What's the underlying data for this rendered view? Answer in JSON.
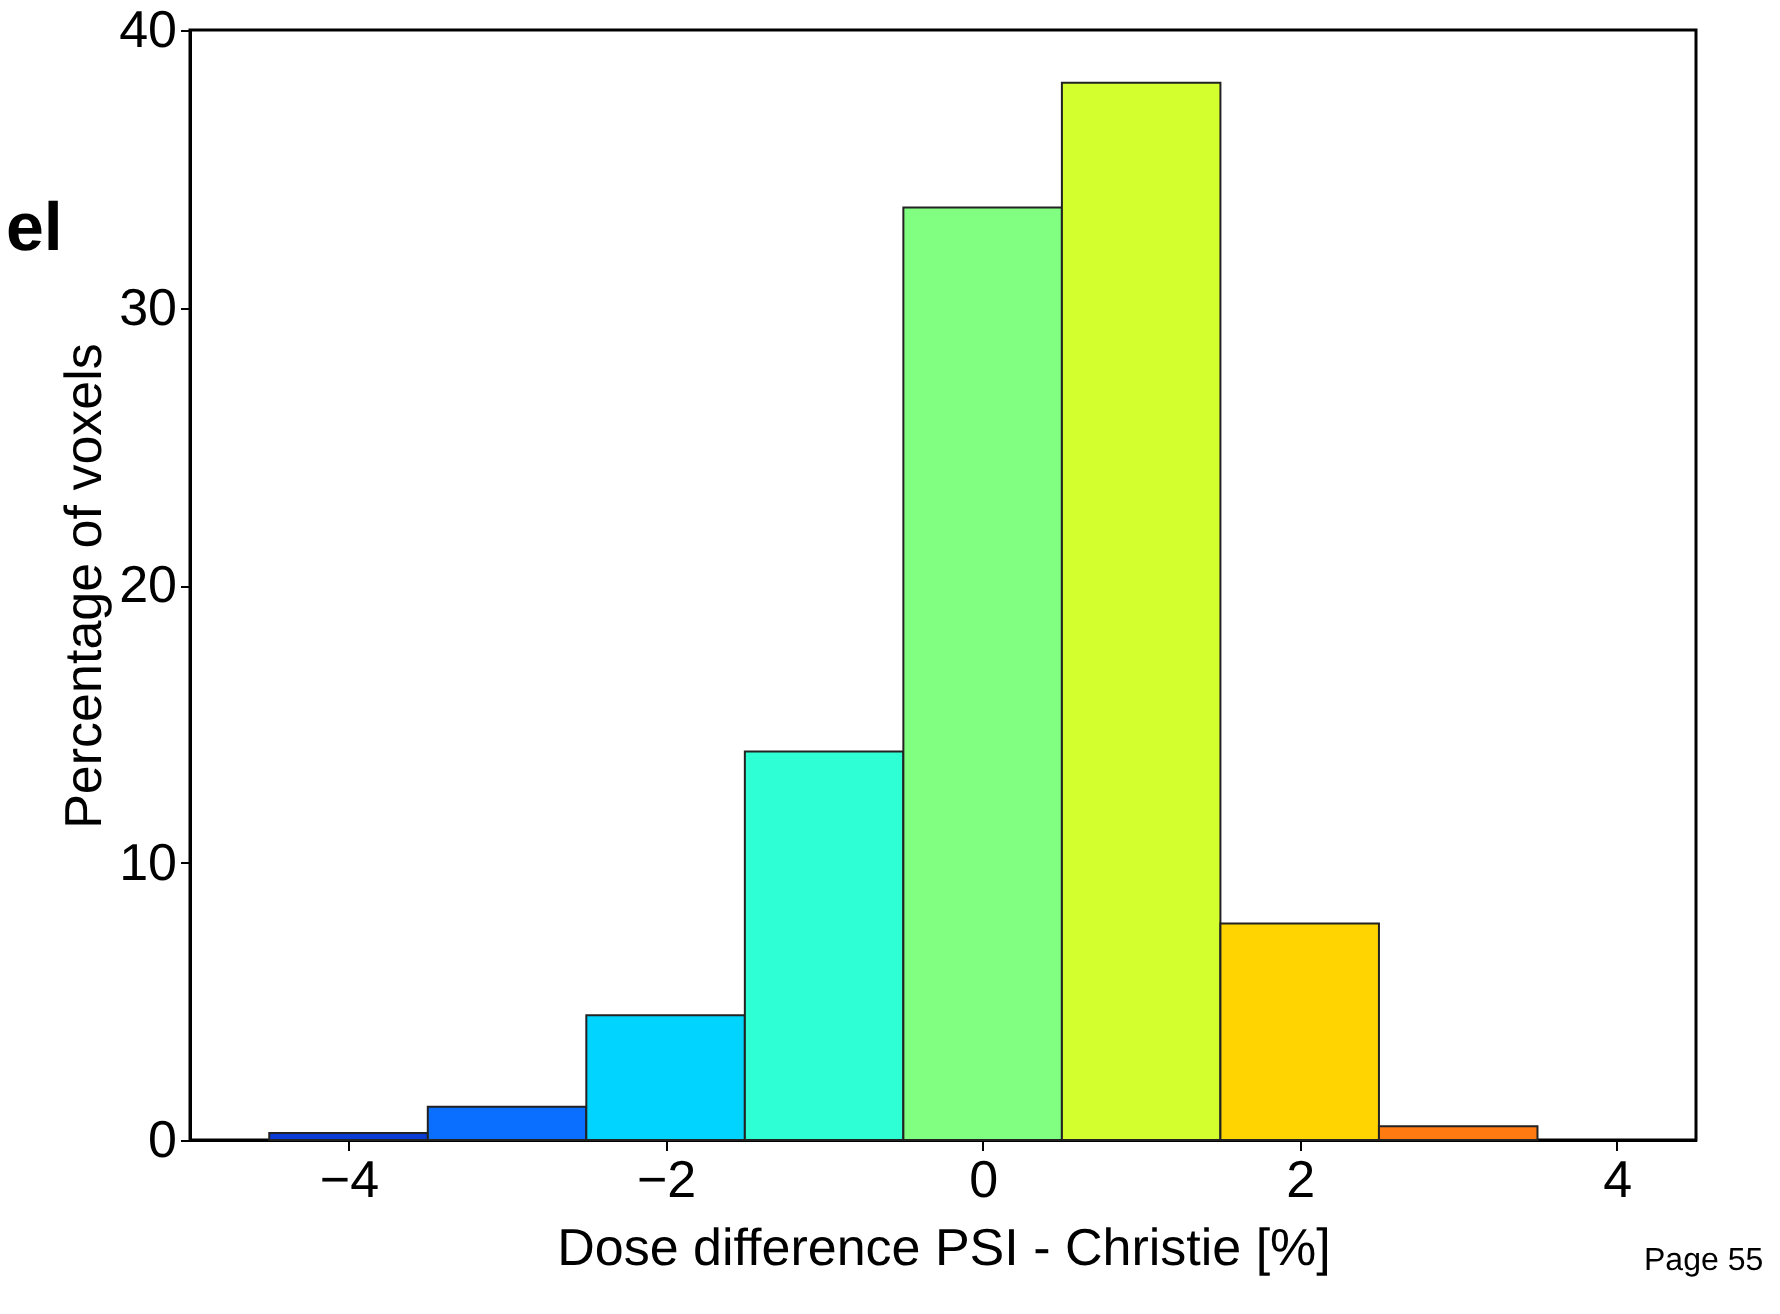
{
  "chart_data": {
    "type": "histogram",
    "xlabel": "Dose difference PSI - Christie [%]",
    "ylabel": "Percentage of voxels",
    "bins": [
      -4.5,
      -3.5,
      -2.5,
      -1.5,
      -0.5,
      0.5,
      1.5,
      2.5,
      3.5
    ],
    "values": [
      0.25,
      1.2,
      4.5,
      14,
      33.6,
      38.1,
      7.8,
      0.5
    ],
    "colors": [
      "#0a3cd6",
      "#0a6eff",
      "#00d4ff",
      "#2effd4",
      "#80ff80",
      "#d4ff2e",
      "#ffd400",
      "#ff7a10"
    ],
    "xlim": [
      -5,
      4.5
    ],
    "xticks": [
      -4,
      -2,
      0,
      2,
      4
    ],
    "ylim": [
      0,
      40
    ],
    "yticks": [
      0,
      10,
      20,
      30,
      40
    ],
    "grid": false,
    "annotations": [
      "el",
      "Page 55"
    ]
  }
}
